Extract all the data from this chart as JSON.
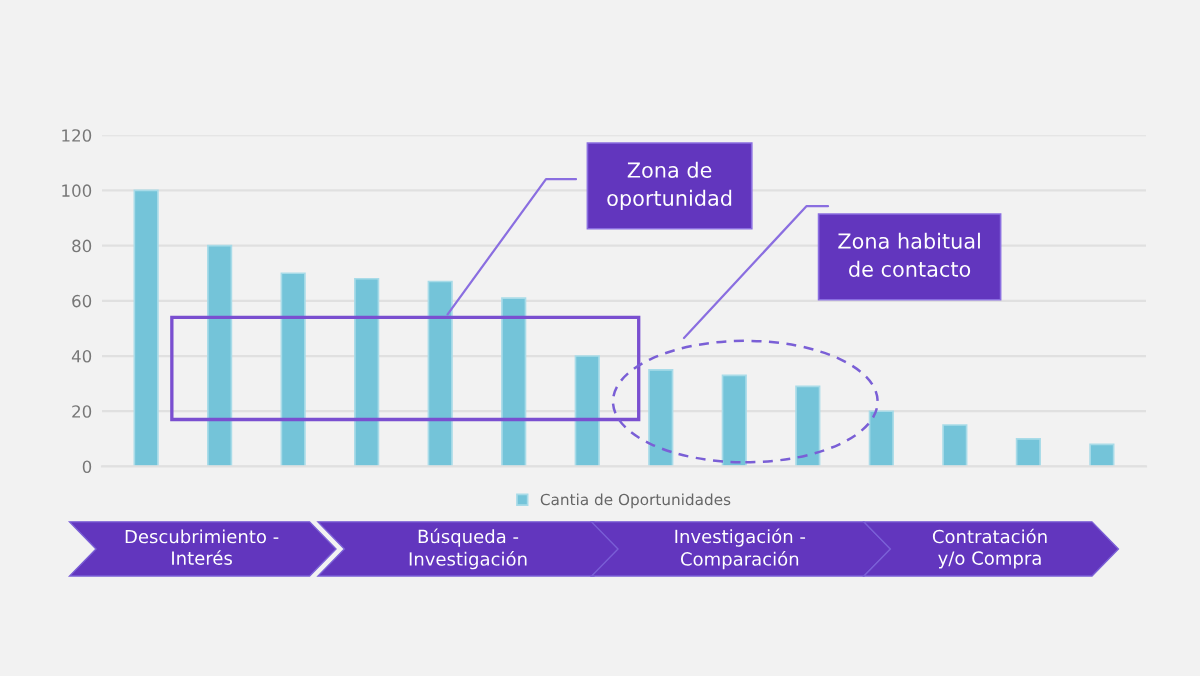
{
  "chart_data": {
    "type": "bar",
    "categories": [
      null,
      null,
      null,
      null,
      null,
      null,
      null,
      null,
      null,
      null,
      null,
      null,
      null,
      null
    ],
    "series": [
      {
        "name": "Cantia de Oportunidades",
        "color": "#74c4d9",
        "values": [
          100,
          80,
          70,
          68,
          67,
          61,
          40,
          35,
          33,
          29,
          20,
          15,
          10,
          8
        ]
      }
    ],
    "ylim": [
      0,
      120
    ],
    "yticks": [
      0,
      20,
      40,
      60,
      80,
      100,
      120
    ],
    "grid": "y",
    "legend": "bottom",
    "annotations": [
      "Zona de\noportunidad",
      "Zona habitual\nde contacto",
      "Descubrimiento -\nInterés",
      "Búsqueda -\nInvestigación",
      "Investigación -\nComparación",
      "Contratación\ny/o Compra"
    ]
  }
}
